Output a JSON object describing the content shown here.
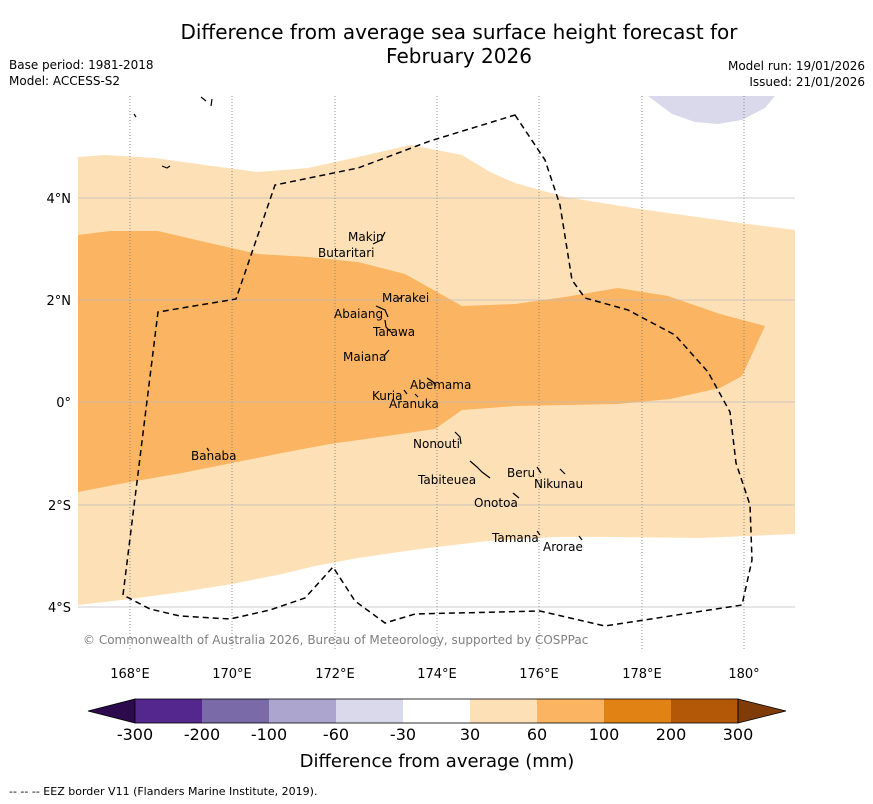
{
  "title_line1": "Difference from average sea surface height forecast for",
  "title_line2": "February 2026",
  "base_period": "Base period: 1981-2018",
  "model": "Model: ACCESS-S2",
  "model_run": "Model run: 19/01/2026",
  "issued": "Issued: 21/01/2026",
  "copyright": "© Commonwealth of Australia 2026, Bureau of Meteorology, supported by COSPPac",
  "lon_ticks": [
    "168°E",
    "170°E",
    "172°E",
    "174°E",
    "176°E",
    "178°E",
    "180°"
  ],
  "lat_ticks": [
    "4°N",
    "2°N",
    "0°",
    "2°S",
    "4°S"
  ],
  "places": [
    "Makin",
    "Butaritari",
    "Marakei",
    "Abaiang",
    "Tarawa",
    "Maiana",
    "Abemama",
    "Kuria",
    "Aranuka",
    "Banaba",
    "Nonouti",
    "Beru",
    "Nikunau",
    "Tabiteuea",
    "Onotoa",
    "Tamana",
    "Arorae"
  ],
  "colorbar": {
    "label": "Difference from average (mm)",
    "ticks": [
      "-300",
      "-200",
      "-100",
      "-60",
      "-30",
      "30",
      "60",
      "100",
      "200",
      "300"
    ],
    "colors": [
      "#2d0a4e",
      "#54278f",
      "#7b6aa8",
      "#aca6cf",
      "#d9d9eb",
      "#ffffff",
      "#fee0b6",
      "#fbb461",
      "#e08214",
      "#b35806",
      "#7f3b08"
    ]
  },
  "legend_note": "-- -- -- EEZ border V11 (Flanders Marine Institute, 2019)."
}
